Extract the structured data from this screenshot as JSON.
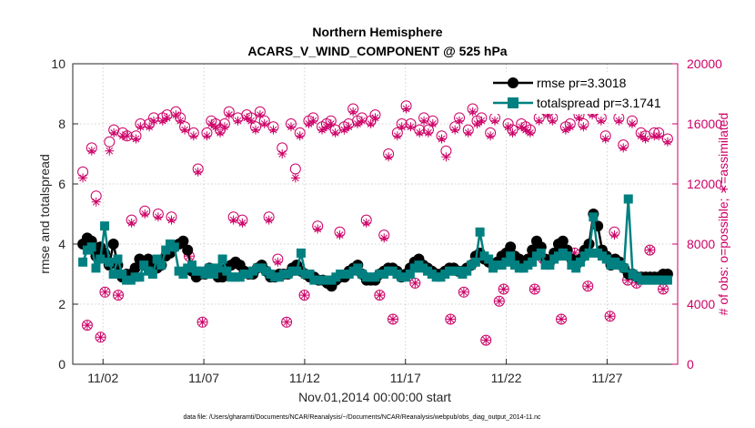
{
  "chart_data": {
    "type": "line",
    "title": "Northern Hemisphere",
    "subtitle": "ACARS_V_WIND_COMPONENT @ 525 hPa",
    "xlabel": "Nov.01,2014 00:00:00 start",
    "ylabel": "rmse and totalspread",
    "ylabel_right": "# of obs: o=possible; ∗=assimilated",
    "footer": "data file: /Users/gharamti/Documents/NCAR/Reanalysis/~/Documents/NCAR/Reanalysis/webpub/obs_diag_output_2014-11.nc",
    "xlim": [
      0.5,
      30.5
    ],
    "ylim": [
      0,
      10
    ],
    "ylim_right": [
      0,
      20000
    ],
    "xticks": [
      2,
      7,
      12,
      17,
      22,
      27
    ],
    "xtick_labels": [
      "11/02",
      "11/07",
      "11/12",
      "11/17",
      "11/22",
      "11/27"
    ],
    "yticks": [
      0,
      2,
      4,
      6,
      8,
      10
    ],
    "yticks_right": [
      0,
      4000,
      8000,
      12000,
      16000,
      20000
    ],
    "grid": true,
    "legend_position": "top-right",
    "series": [
      {
        "name": "rmse pr=3.3018",
        "color": "#000000",
        "marker": "circle",
        "values": [
          4.0,
          4.2,
          4.1,
          3.6,
          3.9,
          3.7,
          3.3,
          4.0,
          3.3,
          2.9,
          3.0,
          3.0,
          3.2,
          3.5,
          3.3,
          3.5,
          3.4,
          3.2,
          3.3,
          3.6,
          3.7,
          3.9,
          4.0,
          4.1,
          3.8,
          3.1,
          2.9,
          3.0,
          3.0,
          3.2,
          3.1,
          2.9,
          2.9,
          3.2,
          3.3,
          3.4,
          3.3,
          3.1,
          3.0,
          3.0,
          3.2,
          3.3,
          3.1,
          2.9,
          2.9,
          3.0,
          3.0,
          3.0,
          3.2,
          3.3,
          3.1,
          3.0,
          2.9,
          2.9,
          2.8,
          2.8,
          2.7,
          2.6,
          2.8,
          2.9,
          2.9,
          3.1,
          3.2,
          3.3,
          3.0,
          2.8,
          2.8,
          2.8,
          3.0,
          3.1,
          3.2,
          3.2,
          3.1,
          2.9,
          3.0,
          3.2,
          3.4,
          3.5,
          3.3,
          3.2,
          3.1,
          3.0,
          3.0,
          3.1,
          3.2,
          3.2,
          3.1,
          3.1,
          3.2,
          3.3,
          3.6,
          3.7,
          3.5,
          3.4,
          3.3,
          3.4,
          3.6,
          3.7,
          3.9,
          3.6,
          3.5,
          3.4,
          3.5,
          3.8,
          4.1,
          3.9,
          3.5,
          3.4,
          3.7,
          4.0,
          4.1,
          3.8,
          3.5,
          3.3,
          3.5,
          3.8,
          4.0,
          5.0,
          4.6,
          3.8,
          3.6,
          3.3,
          3.5,
          3.4,
          3.2,
          3.0,
          3.0,
          2.9,
          2.9,
          2.9,
          2.9,
          2.9,
          2.9,
          3.0,
          3.0
        ]
      },
      {
        "name": "totalspread pr=3.1741",
        "color": "#008080",
        "marker": "square",
        "values": [
          3.4,
          3.8,
          3.9,
          3.2,
          3.5,
          4.6,
          3.4,
          3.0,
          3.5,
          3.0,
          2.8,
          2.8,
          2.9,
          2.9,
          3.3,
          3.1,
          3.0,
          3.5,
          3.3,
          3.8,
          4.0,
          3.9,
          3.1,
          3.0,
          3.2,
          3.3,
          3.1,
          3.1,
          3.0,
          3.2,
          3.0,
          3.2,
          3.5,
          3.1,
          2.9,
          2.9,
          2.9,
          3.0,
          3.0,
          3.1,
          3.2,
          3.2,
          3.1,
          3.0,
          2.9,
          2.9,
          3.0,
          3.0,
          3.1,
          3.1,
          3.7,
          3.0,
          3.0,
          2.8,
          2.8,
          2.8,
          2.8,
          2.8,
          2.9,
          3.0,
          3.0,
          3.0,
          3.1,
          3.2,
          3.0,
          2.9,
          2.9,
          2.9,
          3.0,
          3.0,
          3.1,
          3.1,
          3.0,
          2.9,
          2.9,
          3.0,
          3.2,
          3.3,
          3.2,
          3.1,
          3.0,
          2.9,
          2.9,
          3.0,
          3.1,
          3.1,
          3.1,
          3.0,
          3.1,
          3.3,
          3.4,
          4.4,
          3.6,
          3.5,
          3.2,
          3.3,
          3.3,
          3.4,
          3.6,
          3.3,
          3.2,
          3.2,
          3.3,
          3.4,
          3.6,
          3.7,
          3.3,
          3.3,
          3.5,
          3.6,
          3.7,
          3.6,
          3.3,
          3.2,
          3.4,
          3.6,
          3.7,
          4.9,
          3.7,
          3.6,
          3.5,
          3.3,
          3.4,
          3.3,
          3.2,
          5.5,
          3.0,
          2.9,
          2.8,
          2.8,
          2.8,
          2.8,
          2.8,
          2.8,
          2.8
        ]
      },
      {
        "name": "possible",
        "axis": "right",
        "color": "#cc0066",
        "marker": "open-circle",
        "values": [
          12800,
          2600,
          14400,
          11200,
          1800,
          4800,
          14800,
          15600,
          4600,
          15400,
          15200,
          9600,
          15200,
          16000,
          10200,
          16000,
          16400,
          10000,
          16400,
          16600,
          9800,
          16800,
          16400,
          15800,
          7200,
          15400,
          13000,
          2800,
          15400,
          16200,
          16000,
          15600,
          16000,
          16800,
          9800,
          16400,
          9600,
          16600,
          16400,
          15800,
          16800,
          16200,
          9800,
          15800,
          7000,
          14400,
          2800,
          16000,
          13000,
          15400,
          4600,
          16200,
          16400,
          9200,
          15800,
          16000,
          16200,
          15600,
          8800,
          15800,
          16000,
          17000,
          16200,
          16400,
          9600,
          16200,
          16600,
          4600,
          8600,
          14000,
          3000,
          15400,
          16000,
          17200,
          16000,
          5400,
          15600,
          16400,
          15600,
          16200,
          6000,
          15200,
          14200,
          3000,
          15800,
          16400,
          4800,
          15600,
          17000,
          16200,
          16400,
          1600,
          15400,
          16400,
          4200,
          5000,
          16000,
          15600,
          17200,
          16000,
          15800,
          15600,
          5000,
          16400,
          7000,
          16800,
          16400,
          17800,
          3000,
          15800,
          16000,
          7400,
          16600,
          16000,
          5200,
          16800,
          17200,
          16400,
          15200,
          3200,
          8800,
          16400,
          14600,
          5600,
          16200,
          5400,
          15400,
          15200,
          7600,
          15400,
          15400,
          5000,
          15000
        ]
      },
      {
        "name": "assimilated",
        "axis": "right",
        "color": "#cc0066",
        "marker": "asterisk",
        "values": [
          12400,
          2600,
          14200,
          10800,
          1800,
          4800,
          14200,
          15400,
          4600,
          15200,
          15200,
          9400,
          15000,
          15800,
          10000,
          15800,
          16200,
          9800,
          16200,
          16400,
          9600,
          16600,
          16200,
          15600,
          7200,
          15200,
          12800,
          2800,
          15200,
          16000,
          15800,
          15400,
          15800,
          16600,
          9600,
          16200,
          9400,
          16400,
          16200,
          15600,
          16600,
          16000,
          9600,
          15600,
          6800,
          14000,
          2800,
          15800,
          12400,
          15200,
          4600,
          16000,
          16200,
          9000,
          15600,
          15800,
          16000,
          15400,
          8600,
          15600,
          15800,
          16800,
          16000,
          16200,
          9400,
          16000,
          16400,
          4600,
          8400,
          13800,
          3000,
          15200,
          15800,
          17000,
          15800,
          5400,
          15400,
          16200,
          15400,
          16000,
          6000,
          15000,
          13800,
          3000,
          15600,
          16200,
          4800,
          15400,
          16800,
          16000,
          16200,
          1600,
          15200,
          16200,
          4200,
          5000,
          15800,
          15400,
          17000,
          15800,
          15600,
          15400,
          5000,
          16200,
          7000,
          16600,
          16200,
          17600,
          3000,
          15600,
          15800,
          7400,
          16400,
          15800,
          5200,
          16600,
          17000,
          16200,
          15000,
          3200,
          8600,
          16200,
          14400,
          5600,
          16000,
          5400,
          15200,
          15000,
          7600,
          15200,
          15200,
          5000,
          14800
        ]
      }
    ]
  }
}
